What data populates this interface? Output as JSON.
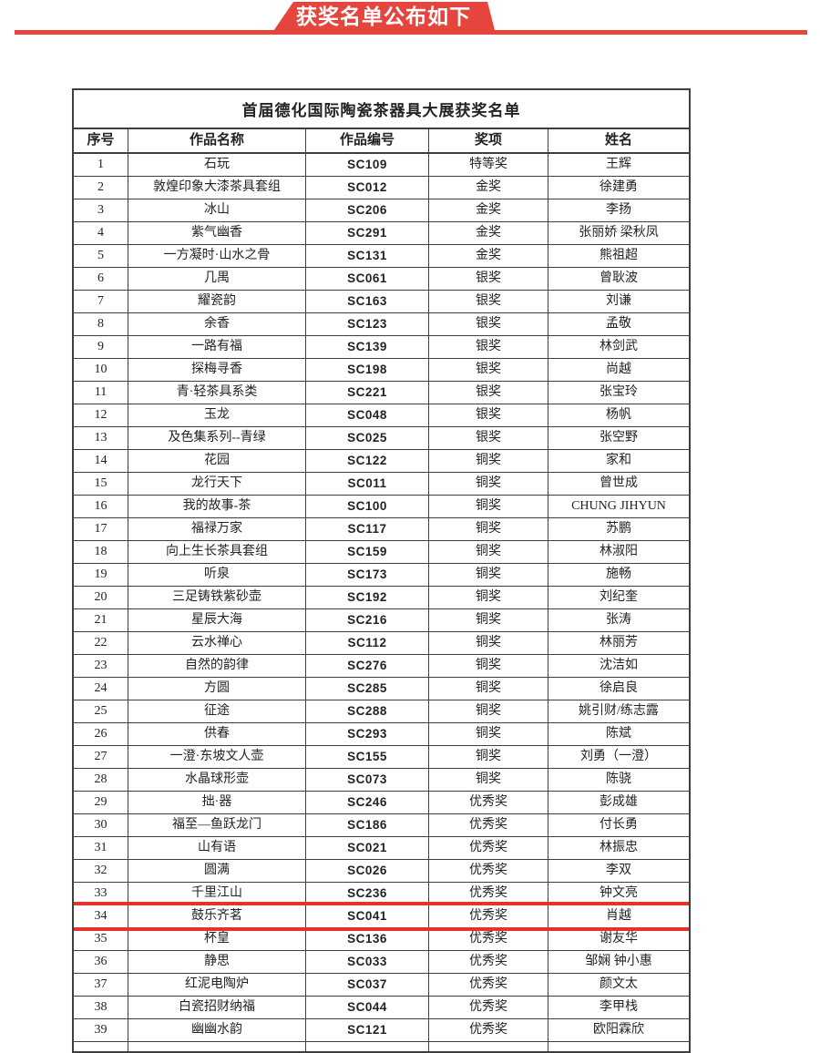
{
  "banner": {
    "label": "获奖名单公布如下"
  },
  "colors": {
    "accent_red": "#e5453c",
    "border": "#3e3e3e",
    "text": "#232323"
  },
  "table": {
    "title": "首届德化国际陶瓷茶器具大展获奖名单",
    "headers": {
      "no": "序号",
      "work": "作品名称",
      "code": "作品编号",
      "award": "奖项",
      "name": "姓名"
    },
    "highlighted_row_no": "34",
    "rows": [
      {
        "no": "1",
        "work": "石玩",
        "code": "SC109",
        "award": "特等奖",
        "name": "王辉"
      },
      {
        "no": "2",
        "work": "敦煌印象大漆茶具套组",
        "code": "SC012",
        "award": "金奖",
        "name": "徐建勇"
      },
      {
        "no": "3",
        "work": "冰山",
        "code": "SC206",
        "award": "金奖",
        "name": "李扬"
      },
      {
        "no": "4",
        "work": "紫气幽香",
        "code": "SC291",
        "award": "金奖",
        "name": "张丽娇 梁秋凤"
      },
      {
        "no": "5",
        "work": "一方凝时·山水之骨",
        "code": "SC131",
        "award": "金奖",
        "name": "熊祖超"
      },
      {
        "no": "6",
        "work": "几禺",
        "code": "SC061",
        "award": "银奖",
        "name": "曾耿波"
      },
      {
        "no": "7",
        "work": "耀瓷韵",
        "code": "SC163",
        "award": "银奖",
        "name": "刘谦"
      },
      {
        "no": "8",
        "work": "余香",
        "code": "SC123",
        "award": "银奖",
        "name": "孟敬"
      },
      {
        "no": "9",
        "work": "一路有福",
        "code": "SC139",
        "award": "银奖",
        "name": "林剑武"
      },
      {
        "no": "10",
        "work": "探梅寻香",
        "code": "SC198",
        "award": "银奖",
        "name": "尚越"
      },
      {
        "no": "11",
        "work": "青·轻茶具系类",
        "code": "SC221",
        "award": "银奖",
        "name": "张宝玲"
      },
      {
        "no": "12",
        "work": "玉龙",
        "code": "SC048",
        "award": "银奖",
        "name": "杨帆"
      },
      {
        "no": "13",
        "work": "及色集系列--青绿",
        "code": "SC025",
        "award": "银奖",
        "name": "张空野"
      },
      {
        "no": "14",
        "work": "花园",
        "code": "SC122",
        "award": "铜奖",
        "name": "家和"
      },
      {
        "no": "15",
        "work": "龙行天下",
        "code": "SC011",
        "award": "铜奖",
        "name": "曾世成"
      },
      {
        "no": "16",
        "work": "我的故事-茶",
        "code": "SC100",
        "award": "铜奖",
        "name": "CHUNG JIHYUN"
      },
      {
        "no": "17",
        "work": "福禄万家",
        "code": "SC117",
        "award": "铜奖",
        "name": "苏鹏"
      },
      {
        "no": "18",
        "work": "向上生长茶具套组",
        "code": "SC159",
        "award": "铜奖",
        "name": "林淑阳"
      },
      {
        "no": "19",
        "work": "听泉",
        "code": "SC173",
        "award": "铜奖",
        "name": "施畅"
      },
      {
        "no": "20",
        "work": "三足铸铁紫砂壶",
        "code": "SC192",
        "award": "铜奖",
        "name": "刘纪奎"
      },
      {
        "no": "21",
        "work": "星辰大海",
        "code": "SC216",
        "award": "铜奖",
        "name": "张涛"
      },
      {
        "no": "22",
        "work": "云水禅心",
        "code": "SC112",
        "award": "铜奖",
        "name": "林丽芳"
      },
      {
        "no": "23",
        "work": "自然的韵律",
        "code": "SC276",
        "award": "铜奖",
        "name": "沈洁如"
      },
      {
        "no": "24",
        "work": "方圆",
        "code": "SC285",
        "award": "铜奖",
        "name": "徐启良"
      },
      {
        "no": "25",
        "work": "征途",
        "code": "SC288",
        "award": "铜奖",
        "name": "姚引财/练志露"
      },
      {
        "no": "26",
        "work": "供春",
        "code": "SC293",
        "award": "铜奖",
        "name": "陈斌"
      },
      {
        "no": "27",
        "work": "一澄·东坡文人壶",
        "code": "SC155",
        "award": "铜奖",
        "name": "刘勇（一澄）"
      },
      {
        "no": "28",
        "work": "水晶球形壶",
        "code": "SC073",
        "award": "铜奖",
        "name": "陈骁"
      },
      {
        "no": "29",
        "work": "拙·器",
        "code": "SC246",
        "award": "优秀奖",
        "name": "彭成雄"
      },
      {
        "no": "30",
        "work": "福至—鱼跃龙门",
        "code": "SC186",
        "award": "优秀奖",
        "name": "付长勇"
      },
      {
        "no": "31",
        "work": "山有语",
        "code": "SC021",
        "award": "优秀奖",
        "name": "林振忠"
      },
      {
        "no": "32",
        "work": "圆满",
        "code": "SC026",
        "award": "优秀奖",
        "name": "李双"
      },
      {
        "no": "33",
        "work": "千里江山",
        "code": "SC236",
        "award": "优秀奖",
        "name": "钟文亮"
      },
      {
        "no": "34",
        "work": "鼓乐齐茗",
        "code": "SC041",
        "award": "优秀奖",
        "name": "肖越"
      },
      {
        "no": "35",
        "work": "杯皇",
        "code": "SC136",
        "award": "优秀奖",
        "name": "谢友华"
      },
      {
        "no": "36",
        "work": "静思",
        "code": "SC033",
        "award": "优秀奖",
        "name": "邹娴 钟小惠"
      },
      {
        "no": "37",
        "work": "红泥电陶炉",
        "code": "SC037",
        "award": "优秀奖",
        "name": "颜文太"
      },
      {
        "no": "38",
        "work": "白瓷招财纳福",
        "code": "SC044",
        "award": "优秀奖",
        "name": "李甲栈"
      },
      {
        "no": "39",
        "work": "幽幽水韵",
        "code": "SC121",
        "award": "优秀奖",
        "name": "欧阳霖欣"
      }
    ]
  }
}
